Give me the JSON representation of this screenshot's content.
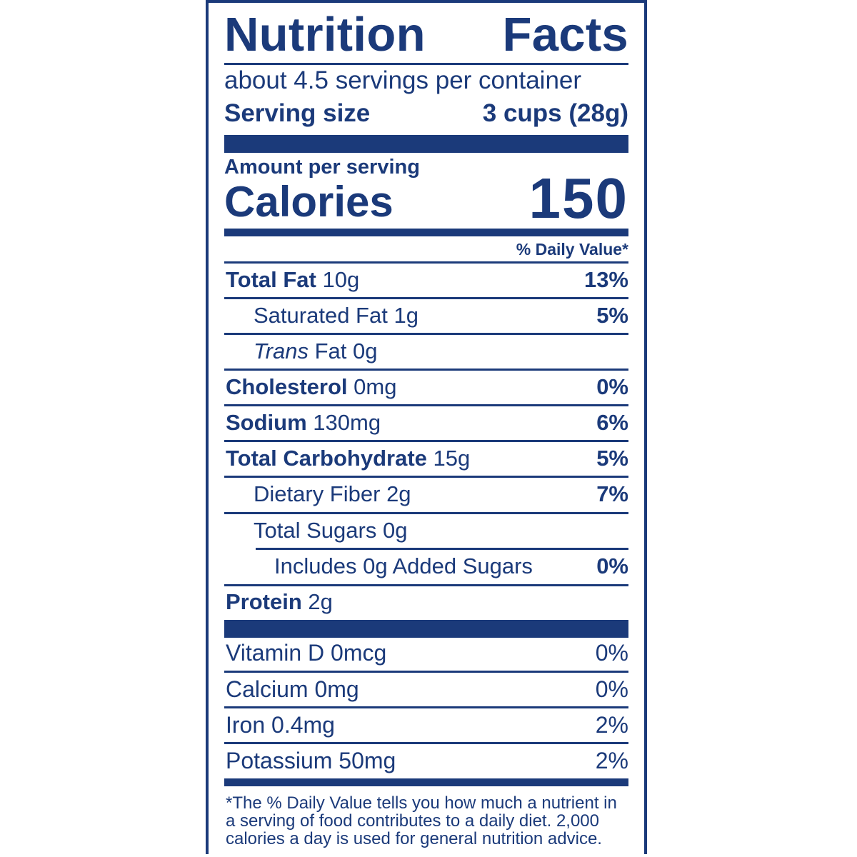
{
  "title": [
    "Nutrition",
    "Facts"
  ],
  "servings_per_container": "about 4.5 servings per container",
  "serving_size": {
    "label": "Serving size",
    "value": "3 cups (28g)"
  },
  "amount_per_serving": "Amount per serving",
  "calories": {
    "label": "Calories",
    "value": "150"
  },
  "daily_value_header": "% Daily Value*",
  "nutrients": [
    {
      "name": "Total Fat",
      "amount": "10g",
      "dv": "13%"
    },
    {
      "name": "Saturated Fat",
      "amount": "1g",
      "dv": "5%"
    },
    {
      "name_italic": "Trans",
      "name": "Fat",
      "amount": "0g",
      "dv": ""
    },
    {
      "name": "Cholesterol",
      "amount": "0mg",
      "dv": "0%"
    },
    {
      "name": "Sodium",
      "amount": "130mg",
      "dv": "6%"
    },
    {
      "name": "Total Carbohydrate",
      "amount": "15g",
      "dv": "5%"
    },
    {
      "name": "Dietary Fiber",
      "amount": "2g",
      "dv": "7%"
    },
    {
      "name": "Total Sugars",
      "amount": "0g",
      "dv": ""
    },
    {
      "name": "Includes 0g Added Sugars",
      "amount": "",
      "dv": "0%"
    },
    {
      "name": "Protein",
      "amount": "2g",
      "dv": ""
    }
  ],
  "vitamins": [
    {
      "name": "Vitamin D",
      "amount": "0mcg",
      "dv": "0%"
    },
    {
      "name": "Calcium",
      "amount": "0mg",
      "dv": "0%"
    },
    {
      "name": "Iron",
      "amount": "0.4mg",
      "dv": "2%"
    },
    {
      "name": "Potassium",
      "amount": "50mg",
      "dv": "2%"
    }
  ],
  "footnote": "*The % Daily Value tells you how much a nutrient in a serving of food contributes to a daily diet. 2,000 calories a day is used for general nutrition advice.",
  "colors": {
    "ink": "#1b3a7a",
    "background": "#ffffff"
  }
}
